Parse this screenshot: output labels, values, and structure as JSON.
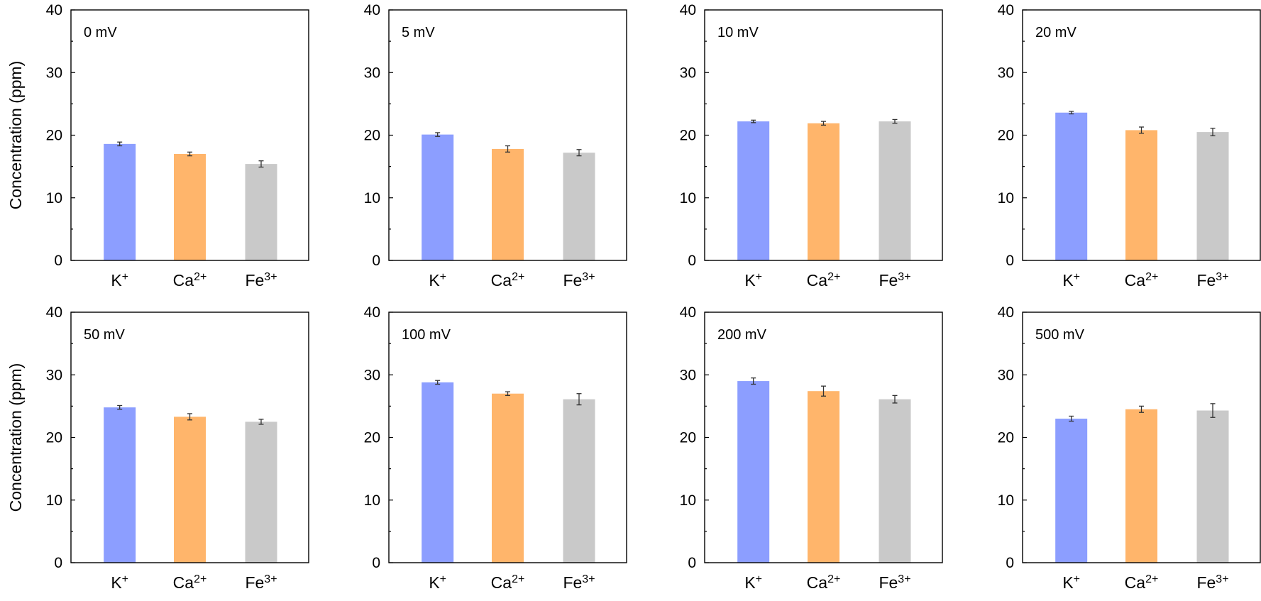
{
  "chart_data": [
    {
      "type": "bar",
      "title": "0 mV",
      "ylabel": "Concentration (ppm)",
      "ylim": [
        0,
        40
      ],
      "yticks": [
        0,
        10,
        20,
        30,
        40
      ],
      "categories": [
        {
          "base": "K",
          "sup": "+"
        },
        {
          "base": "Ca",
          "sup": "2+"
        },
        {
          "base": "Fe",
          "sup": "3+"
        }
      ],
      "values": [
        18.6,
        17.0,
        15.4
      ],
      "errors": [
        0.3,
        0.3,
        0.5
      ],
      "colors": [
        "#8c9eff",
        "#ffb56b",
        "#c9c9c9"
      ]
    },
    {
      "type": "bar",
      "title": "5 mV",
      "ylabel": "",
      "ylim": [
        0,
        40
      ],
      "yticks": [
        0,
        10,
        20,
        30,
        40
      ],
      "categories": [
        {
          "base": "K",
          "sup": "+"
        },
        {
          "base": "Ca",
          "sup": "2+"
        },
        {
          "base": "Fe",
          "sup": "3+"
        }
      ],
      "values": [
        20.1,
        17.8,
        17.2
      ],
      "errors": [
        0.3,
        0.5,
        0.5
      ],
      "colors": [
        "#8c9eff",
        "#ffb56b",
        "#c9c9c9"
      ]
    },
    {
      "type": "bar",
      "title": "10 mV",
      "ylabel": "",
      "ylim": [
        0,
        40
      ],
      "yticks": [
        0,
        10,
        20,
        30,
        40
      ],
      "categories": [
        {
          "base": "K",
          "sup": "+"
        },
        {
          "base": "Ca",
          "sup": "2+"
        },
        {
          "base": "Fe",
          "sup": "3+"
        }
      ],
      "values": [
        22.2,
        21.9,
        22.2
      ],
      "errors": [
        0.2,
        0.3,
        0.3
      ],
      "colors": [
        "#8c9eff",
        "#ffb56b",
        "#c9c9c9"
      ]
    },
    {
      "type": "bar",
      "title": "20 mV",
      "ylabel": "",
      "ylim": [
        0,
        40
      ],
      "yticks": [
        0,
        10,
        20,
        30,
        40
      ],
      "categories": [
        {
          "base": "K",
          "sup": "+"
        },
        {
          "base": "Ca",
          "sup": "2+"
        },
        {
          "base": "Fe",
          "sup": "3+"
        }
      ],
      "values": [
        23.6,
        20.8,
        20.5
      ],
      "errors": [
        0.2,
        0.5,
        0.6
      ],
      "colors": [
        "#8c9eff",
        "#ffb56b",
        "#c9c9c9"
      ]
    },
    {
      "type": "bar",
      "title": "50 mV",
      "ylabel": "Concentration (ppm)",
      "ylim": [
        0,
        40
      ],
      "yticks": [
        0,
        10,
        20,
        30,
        40
      ],
      "categories": [
        {
          "base": "K",
          "sup": "+"
        },
        {
          "base": "Ca",
          "sup": "2+"
        },
        {
          "base": "Fe",
          "sup": "3+"
        }
      ],
      "values": [
        24.8,
        23.3,
        22.5
      ],
      "errors": [
        0.3,
        0.5,
        0.4
      ],
      "colors": [
        "#8c9eff",
        "#ffb56b",
        "#c9c9c9"
      ]
    },
    {
      "type": "bar",
      "title": "100 mV",
      "ylabel": "",
      "ylim": [
        0,
        40
      ],
      "yticks": [
        0,
        10,
        20,
        30,
        40
      ],
      "categories": [
        {
          "base": "K",
          "sup": "+"
        },
        {
          "base": "Ca",
          "sup": "2+"
        },
        {
          "base": "Fe",
          "sup": "3+"
        }
      ],
      "values": [
        28.8,
        27.0,
        26.1
      ],
      "errors": [
        0.3,
        0.3,
        0.9
      ],
      "colors": [
        "#8c9eff",
        "#ffb56b",
        "#c9c9c9"
      ]
    },
    {
      "type": "bar",
      "title": "200 mV",
      "ylabel": "",
      "ylim": [
        0,
        40
      ],
      "yticks": [
        0,
        10,
        20,
        30,
        40
      ],
      "categories": [
        {
          "base": "K",
          "sup": "+"
        },
        {
          "base": "Ca",
          "sup": "2+"
        },
        {
          "base": "Fe",
          "sup": "3+"
        }
      ],
      "values": [
        29.0,
        27.4,
        26.1
      ],
      "errors": [
        0.5,
        0.8,
        0.6
      ],
      "colors": [
        "#8c9eff",
        "#ffb56b",
        "#c9c9c9"
      ]
    },
    {
      "type": "bar",
      "title": "500 mV",
      "ylabel": "",
      "ylim": [
        0,
        40
      ],
      "yticks": [
        0,
        10,
        20,
        30,
        40
      ],
      "categories": [
        {
          "base": "K",
          "sup": "+"
        },
        {
          "base": "Ca",
          "sup": "2+"
        },
        {
          "base": "Fe",
          "sup": "3+"
        }
      ],
      "values": [
        23.0,
        24.5,
        24.3
      ],
      "errors": [
        0.4,
        0.5,
        1.1
      ],
      "colors": [
        "#8c9eff",
        "#ffb56b",
        "#c9c9c9"
      ]
    }
  ]
}
